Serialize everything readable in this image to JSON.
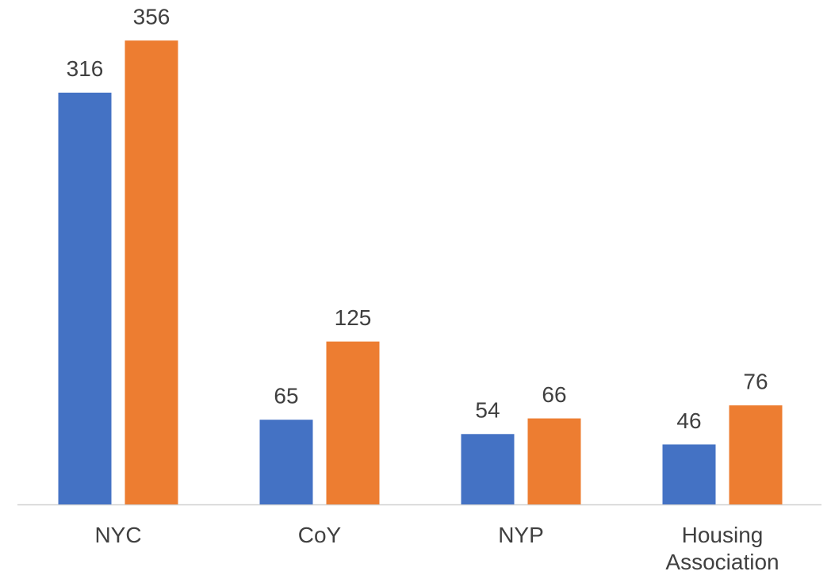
{
  "chart_data": {
    "type": "bar",
    "categories": [
      "NYC",
      "CoY",
      "NYP",
      "Housing Association"
    ],
    "series": [
      {
        "color": "#4472c4",
        "values": [
          316,
          65,
          54,
          46
        ]
      },
      {
        "color": "#ed7d31",
        "values": [
          356,
          125,
          66,
          76
        ]
      }
    ]
  }
}
